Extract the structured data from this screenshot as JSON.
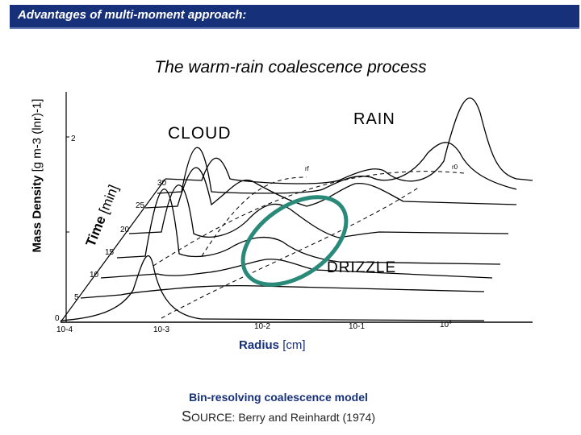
{
  "header": {
    "title": "Advantages of multi-moment approach:"
  },
  "subtitle": "The warm-rain coalescence process",
  "axes": {
    "y_label_bold": "Mass Density",
    "y_label_unit": "[g m-3 (lnr)-1]",
    "time_label_bold": "Time",
    "time_label_unit": "[min]",
    "x_label_bold": "Radius",
    "x_label_unit": "[cm]",
    "x_ticks": [
      "10-4",
      "10-3",
      "10-2",
      "10-1",
      "10°"
    ],
    "time_ticks": [
      "0",
      "5",
      "10",
      "15",
      "20",
      "25",
      "30"
    ],
    "y_tick": "2",
    "y_tick_1": "1"
  },
  "annotations": {
    "cloud": "CLOUD",
    "rain": "RAIN",
    "drizzle": "DRIZZLE",
    "rf": "rf",
    "r0": "r0"
  },
  "caption": "Bin-resolving coalescence model",
  "source_prefix": "S",
  "source_rest": "OURCE: Berry and Reinhardt (1974)",
  "colors": {
    "header_bg": "#17307a",
    "highlight_ellipse": "#2a8a7a",
    "caption": "#17307a"
  }
}
